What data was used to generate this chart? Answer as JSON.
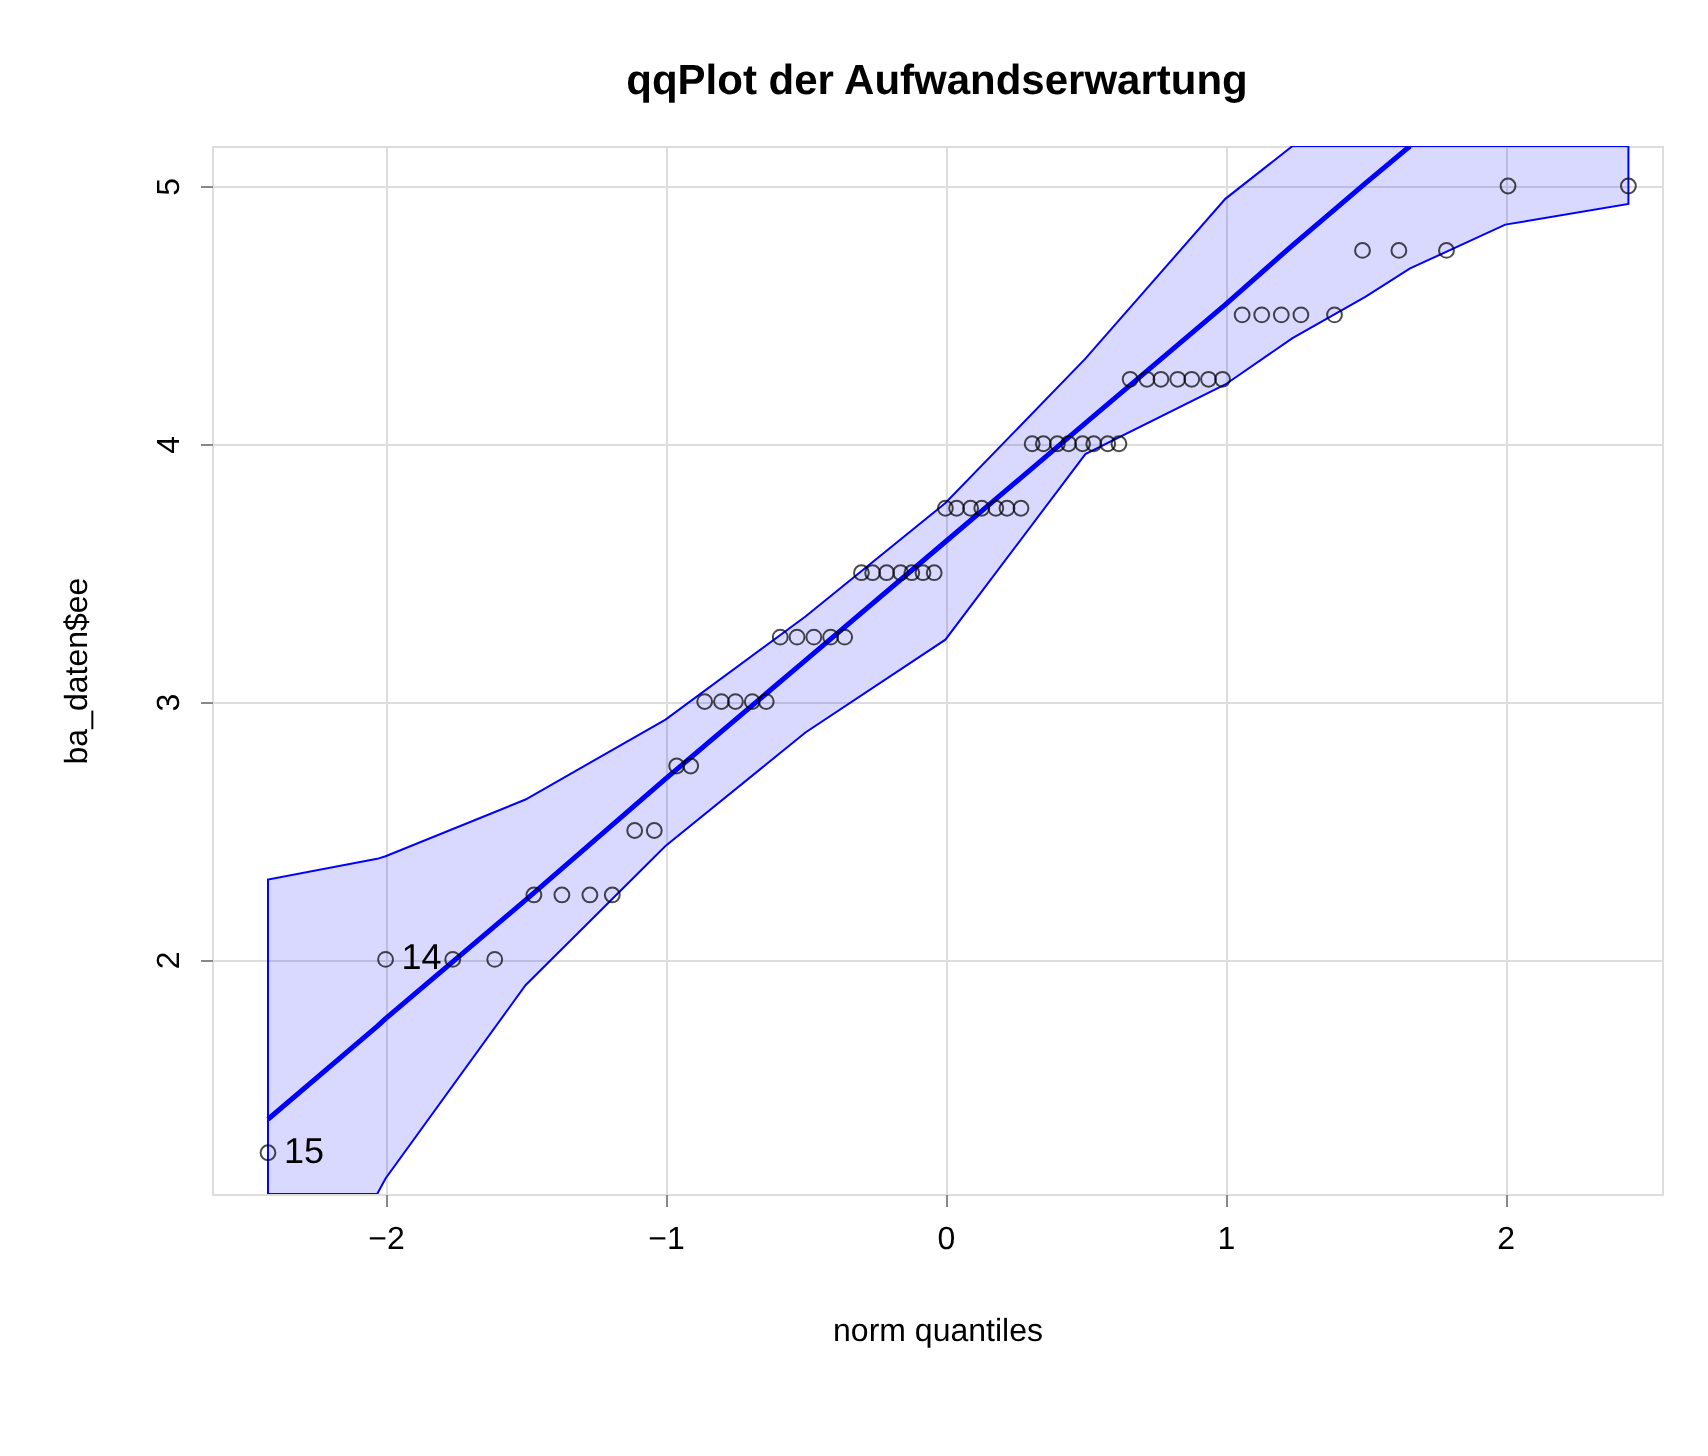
{
  "chart_data": {
    "type": "scatter",
    "title": "qqPlot der Aufwandserwartung",
    "xlabel": "norm quantiles",
    "ylabel": "ba_daten$ee",
    "xlim": [
      -2.62,
      2.56
    ],
    "ylim": [
      1.09,
      5.155
    ],
    "xticks": [
      -2,
      -1,
      0,
      1,
      2
    ],
    "yticks": [
      2,
      3,
      4,
      5
    ],
    "grid": true,
    "marker": "circle",
    "series": [
      {
        "color": "#000000",
        "x": [
          -2.42,
          -2.0,
          -1.76,
          -1.61,
          -1.47,
          -1.37,
          -1.27,
          -1.19,
          -1.11,
          -1.04,
          -0.96,
          -0.91,
          -0.86,
          -0.8,
          -0.75,
          -0.69,
          -0.64,
          -0.59,
          -0.53,
          -0.47,
          -0.41,
          -0.36,
          -0.3,
          -0.26,
          -0.21,
          -0.16,
          -0.12,
          -0.08,
          -0.04,
          0.0,
          0.04,
          0.09,
          0.13,
          0.18,
          0.22,
          0.27,
          0.31,
          0.35,
          0.4,
          0.44,
          0.49,
          0.53,
          0.58,
          0.62,
          0.66,
          0.72,
          0.77,
          0.83,
          0.88,
          0.94,
          0.99,
          1.06,
          1.13,
          1.2,
          1.27,
          1.39,
          1.49,
          1.62,
          1.79,
          2.01,
          2.44
        ],
        "values": [
          1.25,
          2,
          2,
          2,
          2.25,
          2.25,
          2.25,
          2.25,
          2.5,
          2.5,
          2.75,
          2.75,
          3,
          3,
          3,
          3,
          3,
          3.25,
          3.25,
          3.25,
          3.25,
          3.25,
          3.5,
          3.5,
          3.5,
          3.5,
          3.5,
          3.5,
          3.5,
          3.75,
          3.75,
          3.75,
          3.75,
          3.75,
          3.75,
          3.75,
          4,
          4,
          4,
          4,
          4,
          4,
          4,
          4,
          4.25,
          4.25,
          4.25,
          4.25,
          4.25,
          4.25,
          4.25,
          4.5,
          4.5,
          4.5,
          4.5,
          4.5,
          4.75,
          4.75,
          4.75,
          5,
          5
        ]
      },
      {
        "type": "line",
        "color": "#0000ff",
        "line_style": "solid",
        "marker": "none",
        "x": [
          -2.42,
          -2.03,
          -2.0,
          -1.5,
          -1.0,
          -0.5,
          0.0,
          0.5,
          1.0,
          1.24,
          1.5,
          1.66,
          2.0,
          2.44
        ],
        "values": [
          1.38,
          1.74,
          1.77,
          2.23,
          2.7,
          3.16,
          3.62,
          4.08,
          4.54,
          4.77,
          5.01,
          5.155,
          null,
          null
        ],
        "lower": [
          1.09,
          1.09,
          1.15,
          1.9,
          2.44,
          2.88,
          3.24,
          3.96,
          4.23,
          4.41,
          4.57,
          4.68,
          4.85,
          4.93
        ],
        "upper": [
          2.31,
          2.39,
          2.4,
          2.62,
          2.93,
          3.33,
          3.77,
          4.33,
          4.95,
          5.155,
          5.155,
          5.155,
          5.155,
          5.155
        ]
      }
    ],
    "annotations": [
      {
        "text": "14",
        "x": -2.0,
        "y": 2
      },
      {
        "text": "15",
        "x": -2.42,
        "y": 1.25
      }
    ]
  }
}
